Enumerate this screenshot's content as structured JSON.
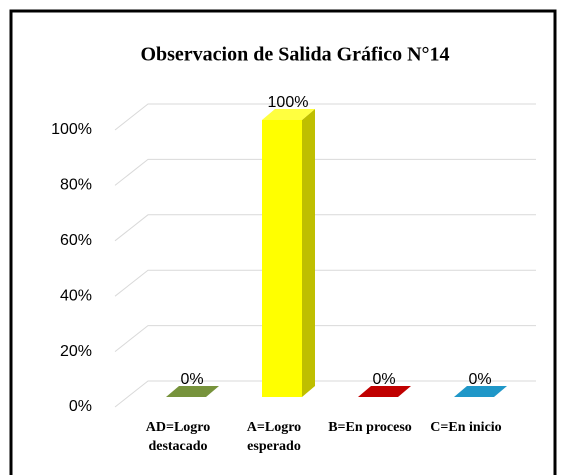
{
  "chart_data": {
    "type": "bar3d",
    "title": "Observacion de Salida Gráfico N°14",
    "categories": [
      "AD=Logro destacado",
      "A=Logro esperado",
      "B=En proceso",
      "C=En inicio"
    ],
    "values": [
      0,
      100,
      0,
      0
    ],
    "value_labels": [
      "0%",
      "100%",
      "0%",
      "0%"
    ],
    "colors": [
      "#77933c",
      "#ffff00",
      "#c00000",
      "#1f97c8"
    ],
    "ylim": [
      0,
      100
    ],
    "yticks": [
      {
        "value": 0,
        "label": "0%"
      },
      {
        "value": 20,
        "label": "20%"
      },
      {
        "value": 40,
        "label": "40%"
      },
      {
        "value": 60,
        "label": "60%"
      },
      {
        "value": 80,
        "label": "80%"
      },
      {
        "value": 100,
        "label": "100%"
      }
    ],
    "grid": true
  }
}
